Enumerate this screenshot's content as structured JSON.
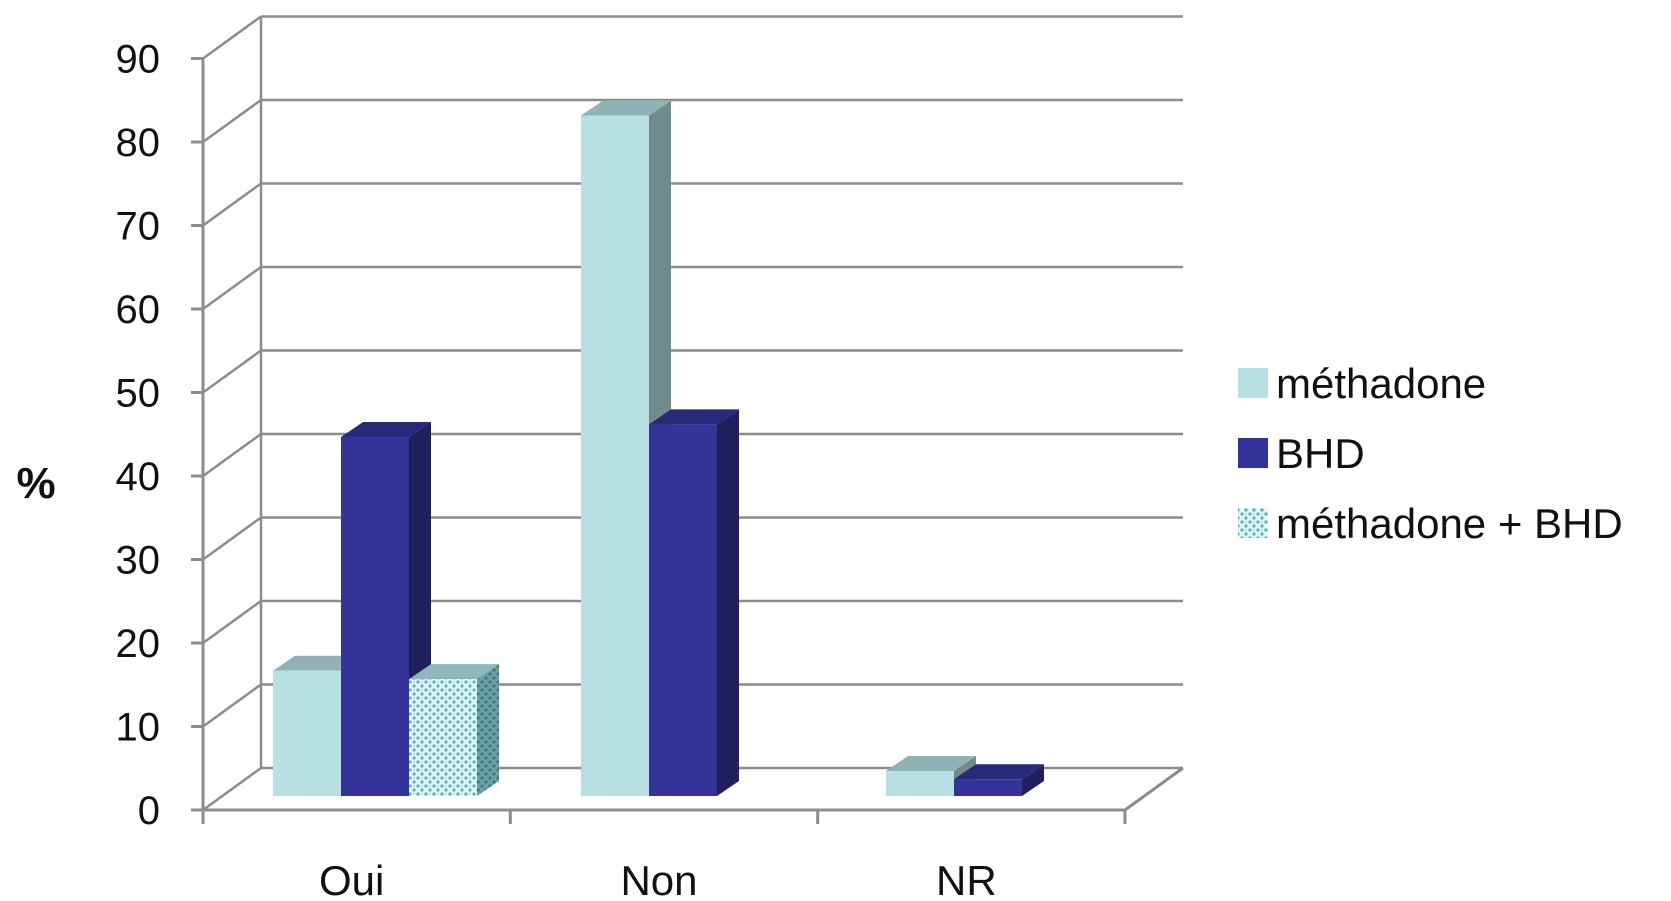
{
  "chart_data": {
    "type": "bar",
    "style": "3d-clustered-column",
    "categories": [
      "Oui",
      "Non",
      "NR"
    ],
    "series": [
      {
        "name": "méthadone",
        "values": [
          15,
          81.5,
          3
        ],
        "color": "#b7e0e3",
        "pattern": "solid"
      },
      {
        "name": "BHD",
        "values": [
          43,
          44.5,
          2
        ],
        "color": "#333399",
        "pattern": "solid"
      },
      {
        "name": "méthadone + BHD",
        "values": [
          14,
          null,
          null
        ],
        "color": "#9fd3d8",
        "pattern": "dotted"
      }
    ],
    "title": "",
    "xlabel": "",
    "ylabel": "%",
    "ylim": [
      0,
      90
    ],
    "yticks": [
      "0",
      "10",
      "20",
      "30",
      "40",
      "50",
      "60",
      "70",
      "80",
      "90"
    ],
    "grid": true,
    "legend_position": "right"
  }
}
